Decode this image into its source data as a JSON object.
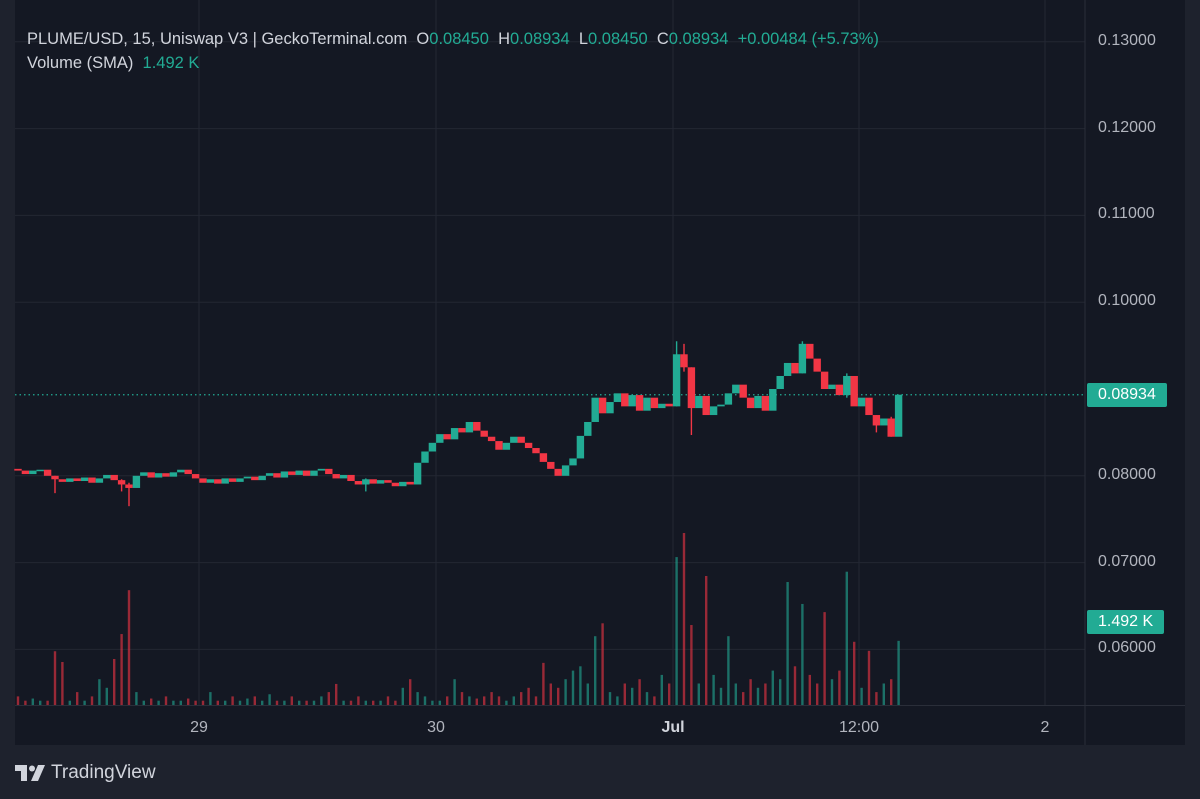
{
  "legend": {
    "title": "PLUME/USD, 15, Uniswap V3 | GeckoTerminal.com",
    "o_label": "O",
    "o": "0.08450",
    "h_label": "H",
    "h": "0.08934",
    "l_label": "L",
    "l": "0.08450",
    "c_label": "C",
    "c": "0.08934",
    "change": "+0.00484 (+5.73%)",
    "volume_label": "Volume (SMA)",
    "volume_value": "1.492 K"
  },
  "price_tag": "0.08934",
  "volume_tag": "1.492 K",
  "brand": "TradingView",
  "colors": {
    "up": "#22ab94",
    "down": "#f23645",
    "background": "#141823",
    "grid": "#232733"
  },
  "chart_data": {
    "type": "candlestick",
    "interval": "15",
    "y_ticks": [
      "0.13000",
      "0.12000",
      "0.11000",
      "0.10000",
      "0.08000",
      "0.07000",
      "0.06000"
    ],
    "ylim": [
      0.06,
      0.13
    ],
    "x_ticks": [
      "29",
      "30",
      "Jul",
      "12:00",
      "2"
    ],
    "grid": true,
    "last_price": 0.08934,
    "first_open": 0.0808,
    "close": [
      0.0806,
      0.0802,
      0.0806,
      0.0807,
      0.08,
      0.0796,
      0.0793,
      0.0797,
      0.0794,
      0.0798,
      0.0792,
      0.0797,
      0.0801,
      0.0795,
      0.079,
      0.0786,
      0.08,
      0.0804,
      0.0798,
      0.0803,
      0.0799,
      0.0804,
      0.0807,
      0.0802,
      0.0797,
      0.0792,
      0.0796,
      0.0791,
      0.0797,
      0.0793,
      0.0797,
      0.0799,
      0.0795,
      0.08,
      0.0803,
      0.0798,
      0.0805,
      0.0801,
      0.0806,
      0.08,
      0.0806,
      0.0808,
      0.0802,
      0.0797,
      0.0801,
      0.0794,
      0.079,
      0.0796,
      0.0791,
      0.0795,
      0.0792,
      0.0788,
      0.0793,
      0.079,
      0.0815,
      0.0828,
      0.0838,
      0.0848,
      0.0842,
      0.0855,
      0.085,
      0.0862,
      0.0852,
      0.0845,
      0.084,
      0.083,
      0.0838,
      0.0845,
      0.0838,
      0.0832,
      0.0826,
      0.0816,
      0.0808,
      0.08,
      0.0812,
      0.082,
      0.0846,
      0.0862,
      0.089,
      0.0872,
      0.0885,
      0.0895,
      0.088,
      0.0893,
      0.0875,
      0.089,
      0.0878,
      0.0883,
      0.088,
      0.094,
      0.0925,
      0.0878,
      0.0892,
      0.087,
      0.088,
      0.0882,
      0.0895,
      0.0905,
      0.089,
      0.0878,
      0.0892,
      0.0875,
      0.09,
      0.0915,
      0.093,
      0.0918,
      0.0952,
      0.0935,
      0.092,
      0.09,
      0.0905,
      0.0893,
      0.0915,
      0.088,
      0.089,
      0.087,
      0.0858,
      0.0866,
      0.0845,
      0.08934
    ],
    "wicks": {
      "5": [
        0.08,
        0.078
      ],
      "14": [
        0.0796,
        0.0782
      ],
      "15": [
        0.0792,
        0.0765
      ],
      "47": [
        0.0797,
        0.0782
      ],
      "89": [
        0.0955,
        0.088
      ],
      "90": [
        0.0952,
        0.092
      ],
      "91": [
        0.0925,
        0.0847
      ],
      "106": [
        0.0955,
        0.0918
      ],
      "112": [
        0.0918,
        0.089
      ],
      "116": [
        0.087,
        0.085
      ],
      "118": [
        0.0868,
        0.0845
      ]
    },
    "volume_k": [
      0.2,
      0.1,
      0.15,
      0.1,
      0.1,
      1.25,
      1.0,
      0.1,
      0.3,
      0.1,
      0.2,
      0.6,
      0.4,
      1.07,
      1.65,
      2.67,
      0.3,
      0.1,
      0.15,
      0.1,
      0.2,
      0.1,
      0.1,
      0.15,
      0.1,
      0.1,
      0.3,
      0.1,
      0.1,
      0.2,
      0.1,
      0.15,
      0.2,
      0.1,
      0.25,
      0.1,
      0.1,
      0.2,
      0.1,
      0.1,
      0.1,
      0.2,
      0.3,
      0.49,
      0.1,
      0.1,
      0.2,
      0.1,
      0.1,
      0.1,
      0.2,
      0.1,
      0.4,
      0.6,
      0.3,
      0.2,
      0.1,
      0.1,
      0.2,
      0.6,
      0.3,
      0.2,
      0.15,
      0.2,
      0.3,
      0.2,
      0.1,
      0.2,
      0.3,
      0.4,
      0.2,
      0.98,
      0.5,
      0.4,
      0.6,
      0.8,
      0.9,
      0.5,
      1.6,
      1.9,
      0.3,
      0.2,
      0.5,
      0.4,
      0.6,
      0.3,
      0.2,
      0.7,
      0.5,
      3.44,
      4.0,
      1.86,
      0.5,
      3.0,
      0.7,
      0.4,
      1.6,
      0.5,
      0.3,
      0.6,
      0.4,
      0.5,
      0.8,
      0.6,
      2.86,
      0.9,
      2.35,
      0.7,
      0.5,
      2.16,
      0.6,
      0.8,
      3.1,
      1.47,
      0.4,
      1.26,
      0.3,
      0.5,
      0.6,
      1.492
    ]
  }
}
